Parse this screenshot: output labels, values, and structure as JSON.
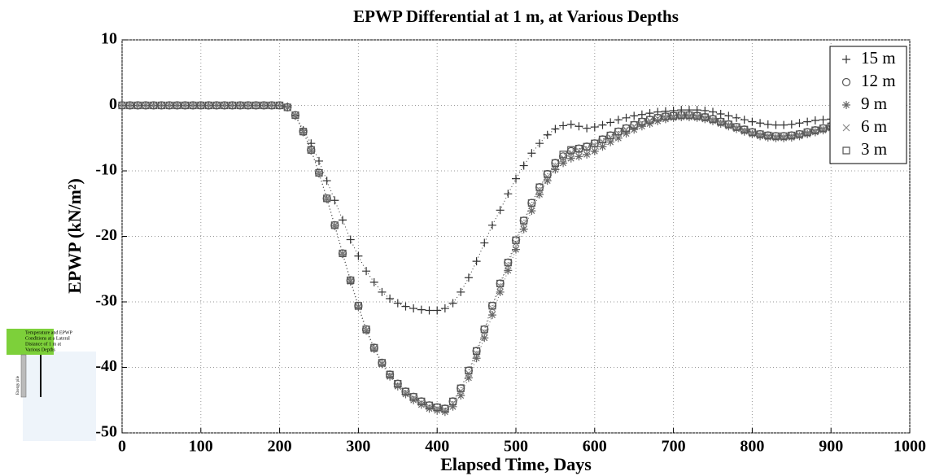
{
  "chart_data": {
    "type": "scatter",
    "title": "EPWP Differential at 1 m, at Various Depths",
    "x_label": "Elapsed Time, Days",
    "y_label": "EPWP (kN/m²)",
    "xlim": [
      0,
      1000
    ],
    "xticks": [
      0,
      100,
      200,
      300,
      400,
      500,
      600,
      700,
      800,
      900,
      1000
    ],
    "ylim": [
      -50,
      10
    ],
    "yticks": [
      -50,
      -40,
      -30,
      -20,
      -10,
      0,
      10
    ],
    "grid": true,
    "legend": "upper right",
    "x": [
      0,
      10,
      20,
      30,
      40,
      50,
      60,
      70,
      80,
      90,
      100,
      110,
      120,
      130,
      140,
      150,
      160,
      170,
      180,
      190,
      200,
      210,
      220,
      230,
      240,
      250,
      260,
      270,
      280,
      290,
      300,
      310,
      320,
      330,
      340,
      350,
      360,
      370,
      380,
      390,
      400,
      410,
      420,
      430,
      440,
      450,
      460,
      470,
      480,
      490,
      500,
      510,
      520,
      530,
      540,
      550,
      560,
      570,
      580,
      590,
      600,
      610,
      620,
      630,
      640,
      650,
      660,
      670,
      680,
      690,
      700,
      710,
      720,
      730,
      740,
      750,
      760,
      770,
      780,
      790,
      800,
      810,
      820,
      830,
      840,
      850,
      860,
      870,
      880,
      890,
      900
    ],
    "series": [
      {
        "name": "15 m",
        "marker": "plus",
        "color": "#333333",
        "values": [
          0,
          0,
          0,
          0,
          0,
          0,
          0,
          0,
          0,
          0,
          0,
          0,
          0,
          0,
          0,
          0,
          0,
          0,
          0,
          0,
          0,
          -0.2,
          -1.5,
          -3.8,
          -5.8,
          -8.5,
          -11.5,
          -14.5,
          -17.5,
          -20.5,
          -23,
          -25.3,
          -27,
          -28.5,
          -29.5,
          -30.2,
          -30.7,
          -31,
          -31.2,
          -31.3,
          -31.3,
          -31,
          -30.2,
          -28.5,
          -26.3,
          -23.8,
          -21,
          -18.3,
          -16,
          -13.5,
          -11.2,
          -9.2,
          -7.3,
          -5.8,
          -4.5,
          -3.6,
          -3.1,
          -2.9,
          -3.2,
          -3.5,
          -3.3,
          -3,
          -2.6,
          -2.2,
          -1.9,
          -1.6,
          -1.4,
          -1.2,
          -1,
          -0.9,
          -0.8,
          -0.7,
          -0.7,
          -0.7,
          -0.8,
          -1,
          -1.3,
          -1.6,
          -1.9,
          -2.2,
          -2.5,
          -2.7,
          -2.9,
          -3,
          -3,
          -2.9,
          -2.7,
          -2.5,
          -2.3,
          -2.2,
          -2.1
        ]
      },
      {
        "name": "12 m",
        "marker": "circle",
        "color": "#555555",
        "values": [
          0,
          0,
          0,
          0,
          0,
          0,
          0,
          0,
          0,
          0,
          0,
          0,
          0,
          0,
          0,
          0,
          0,
          0,
          0,
          0,
          0,
          -0.3,
          -1.5,
          -4,
          -6.8,
          -10.3,
          -14.2,
          -18.3,
          -22.6,
          -26.7,
          -30.6,
          -34.2,
          -37,
          -39.3,
          -41.1,
          -42.5,
          -43.7,
          -44.5,
          -45.2,
          -45.8,
          -46.1,
          -46.3,
          -45.2,
          -43.2,
          -40.5,
          -37.5,
          -34.2,
          -30.6,
          -27.2,
          -24,
          -20.6,
          -17.6,
          -14.9,
          -12.5,
          -10.5,
          -8.8,
          -7.8,
          -7,
          -6.6,
          -6.3,
          -5.8,
          -5.2,
          -4.6,
          -4,
          -3.5,
          -3,
          -2.5,
          -2.2,
          -1.9,
          -1.7,
          -1.6,
          -1.5,
          -1.5,
          -1.6,
          -1.8,
          -2.1,
          -2.5,
          -2.9,
          -3.3,
          -3.7,
          -4.1,
          -4.4,
          -4.6,
          -4.7,
          -4.7,
          -4.6,
          -4.4,
          -4.1,
          -3.8,
          -3.5,
          -3.2
        ]
      },
      {
        "name": "9 m",
        "marker": "star",
        "color": "#666666",
        "values": [
          0,
          0,
          0,
          0,
          0,
          0,
          0,
          0,
          0,
          0,
          0,
          0,
          0,
          0,
          0,
          0,
          0,
          0,
          0,
          0,
          0,
          -0.3,
          -1.6,
          -4.1,
          -6.9,
          -10.4,
          -14.3,
          -18.4,
          -22.7,
          -26.9,
          -30.8,
          -34.4,
          -37.2,
          -39.5,
          -41.4,
          -42.9,
          -44.1,
          -45,
          -45.7,
          -46.3,
          -46.6,
          -46.8,
          -46,
          -44.3,
          -41.6,
          -38.6,
          -35.5,
          -32,
          -28.5,
          -25.2,
          -22,
          -18.9,
          -16.1,
          -13.6,
          -11.5,
          -9.8,
          -8.8,
          -8.1,
          -7.8,
          -7.5,
          -7,
          -6.3,
          -5.6,
          -5,
          -4.3,
          -3.7,
          -3.2,
          -2.8,
          -2.4,
          -2.1,
          -1.9,
          -1.8,
          -1.8,
          -1.9,
          -2.1,
          -2.4,
          -2.8,
          -3.2,
          -3.6,
          -4,
          -4.4,
          -4.7,
          -4.9,
          -5,
          -5,
          -4.9,
          -4.7,
          -4.4,
          -4.1,
          -3.8,
          -3.5
        ]
      },
      {
        "name": "6 m",
        "marker": "cross",
        "color": "#888888",
        "values": [
          0,
          0,
          0,
          0,
          0,
          0,
          0,
          0,
          0,
          0,
          0,
          0,
          0,
          0,
          0,
          0,
          0,
          0,
          0,
          0,
          0,
          -0.3,
          -1.5,
          -4,
          -6.8,
          -10.3,
          -14.2,
          -18.3,
          -22.6,
          -26.7,
          -30.7,
          -34.3,
          -37.1,
          -39.4,
          -41.2,
          -42.7,
          -43.8,
          -44.7,
          -45.4,
          -46,
          -46.3,
          -46.5,
          -45.5,
          -43.6,
          -40.9,
          -37.9,
          -34.6,
          -31,
          -27.6,
          -24.4,
          -21,
          -18,
          -15.3,
          -12.9,
          -10.9,
          -9.2,
          -8.1,
          -7.3,
          -6.9,
          -6.6,
          -6.1,
          -5.5,
          -4.9,
          -4.3,
          -3.7,
          -3.2,
          -2.7,
          -2.3,
          -2,
          -1.8,
          -1.7,
          -1.6,
          -1.6,
          -1.7,
          -1.9,
          -2.2,
          -2.6,
          -3,
          -3.4,
          -3.8,
          -4.2,
          -4.5,
          -4.7,
          -4.8,
          -4.8,
          -4.7,
          -4.5,
          -4.2,
          -3.9,
          -3.6,
          -3.3
        ]
      },
      {
        "name": "3 m",
        "marker": "square",
        "color": "#555555",
        "values": [
          0,
          0,
          0,
          0,
          0,
          0,
          0,
          0,
          0,
          0,
          0,
          0,
          0,
          0,
          0,
          0,
          0,
          0,
          0,
          0,
          0,
          -0.3,
          -1.5,
          -4,
          -6.8,
          -10.3,
          -14.2,
          -18.3,
          -22.6,
          -26.7,
          -30.6,
          -34.2,
          -37,
          -39.3,
          -41.1,
          -42.5,
          -43.7,
          -44.5,
          -45.2,
          -45.8,
          -46.1,
          -46.3,
          -45.2,
          -43.2,
          -40.5,
          -37.5,
          -34.2,
          -30.6,
          -27.2,
          -24,
          -20.6,
          -17.6,
          -14.9,
          -12.5,
          -10.5,
          -8.8,
          -7.5,
          -6.8,
          -6.6,
          -6.3,
          -5.8,
          -5.2,
          -4.6,
          -4,
          -3.5,
          -3,
          -2.5,
          -2.2,
          -1.9,
          -1.7,
          -1.6,
          -1.5,
          -1.5,
          -1.6,
          -1.8,
          -2.1,
          -2.5,
          -2.9,
          -3.3,
          -3.7,
          -4.1,
          -4.4,
          -4.6,
          -4.7,
          -4.7,
          -4.6,
          -4.4,
          -4.1,
          -3.8,
          -3.5,
          -3.2
        ]
      }
    ],
    "inset": {
      "caption": [
        "Temperature and EPWP",
        "Conditions at a Lateral",
        "Distance of 1 m at",
        "Various Depths"
      ],
      "pile_label": "Energy pile"
    }
  }
}
